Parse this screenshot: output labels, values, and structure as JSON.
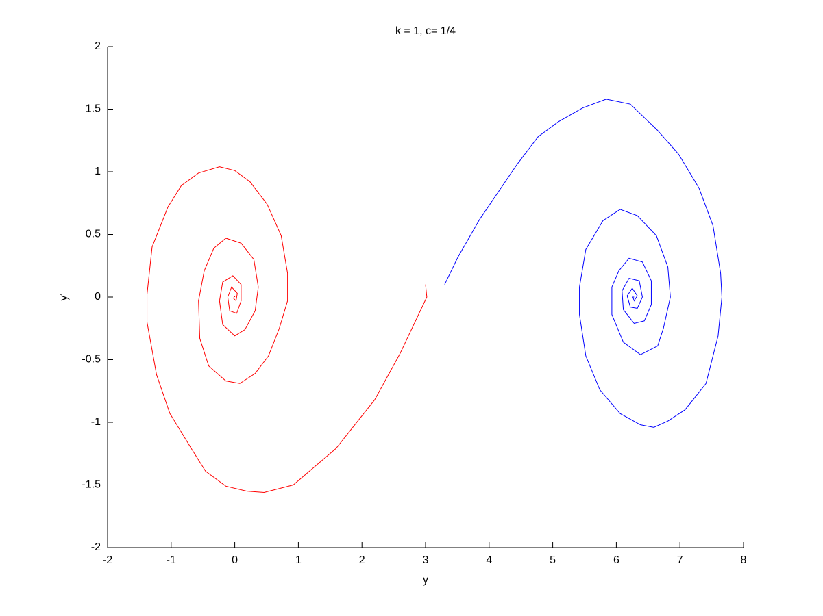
{
  "chart_data": {
    "type": "line",
    "title": "k = 1, c= 1/4",
    "xlabel": "y",
    "ylabel": "y'",
    "xlim": [
      -2,
      8
    ],
    "xticks": [
      -2,
      -1,
      0,
      1,
      2,
      3,
      4,
      5,
      6,
      7,
      8
    ],
    "ylim": [
      -2,
      2
    ],
    "yticks": [
      -2,
      -1.5,
      -1,
      -0.5,
      0,
      0.5,
      1,
      1.5,
      2
    ],
    "grid": false,
    "series": [
      {
        "color": "#ff0000",
        "x": [
          3.0,
          3.02,
          2.88,
          2.6,
          2.2,
          1.59,
          0.92,
          0.46,
          0.19,
          -0.14,
          -0.46,
          -0.67,
          -1.02,
          -1.23,
          -1.38,
          -1.38,
          -1.3,
          -1.05,
          -0.84,
          -0.57,
          -0.24,
          0.0,
          0.24,
          0.51,
          0.73,
          0.83,
          0.83,
          0.7,
          0.53,
          0.32,
          0.08,
          -0.14,
          -0.41,
          -0.55,
          -0.57,
          -0.48,
          -0.33,
          -0.14,
          0.1,
          0.3,
          0.37,
          0.32,
          0.16,
          0.0,
          -0.19,
          -0.24,
          -0.19,
          -0.03,
          0.1,
          0.1,
          0.03,
          -0.08,
          -0.11,
          -0.05,
          0.04,
          0.02,
          -0.02,
          0.0,
          0.0
        ],
        "values": [
          0.1,
          0.0,
          -0.15,
          -0.45,
          -0.82,
          -1.21,
          -1.5,
          -1.56,
          -1.55,
          -1.51,
          -1.39,
          -1.22,
          -0.93,
          -0.62,
          -0.2,
          0.02,
          0.4,
          0.72,
          0.89,
          0.99,
          1.04,
          1.01,
          0.92,
          0.74,
          0.49,
          0.19,
          -0.03,
          -0.25,
          -0.47,
          -0.61,
          -0.69,
          -0.67,
          -0.55,
          -0.33,
          -0.03,
          0.21,
          0.39,
          0.47,
          0.43,
          0.3,
          0.08,
          -0.11,
          -0.26,
          -0.31,
          -0.22,
          -0.03,
          0.12,
          0.17,
          0.1,
          -0.03,
          -0.13,
          -0.11,
          0.0,
          0.08,
          0.03,
          -0.03,
          -0.01,
          0.01,
          0.0
        ]
      },
      {
        "color": "#0000ff",
        "x": [
          3.3,
          3.51,
          3.85,
          4.44,
          4.77,
          5.09,
          5.47,
          5.84,
          6.22,
          6.65,
          6.98,
          7.3,
          7.52,
          7.64,
          7.66,
          7.6,
          7.41,
          7.08,
          6.81,
          6.59,
          6.38,
          6.06,
          5.74,
          5.52,
          5.42,
          5.42,
          5.52,
          5.79,
          6.06,
          6.33,
          6.63,
          6.81,
          6.85,
          6.74,
          6.65,
          6.38,
          6.11,
          5.93,
          5.93,
          6.04,
          6.2,
          6.41,
          6.55,
          6.55,
          6.44,
          6.28,
          6.11,
          6.09,
          6.2,
          6.36,
          6.41,
          6.33,
          6.22,
          6.17,
          6.25,
          6.33,
          6.28,
          6.26,
          6.28
        ],
        "values": [
          0.1,
          0.32,
          0.62,
          1.06,
          1.28,
          1.4,
          1.51,
          1.58,
          1.54,
          1.33,
          1.14,
          0.87,
          0.57,
          0.19,
          0.0,
          -0.31,
          -0.69,
          -0.9,
          -0.99,
          -1.04,
          -1.02,
          -0.93,
          -0.74,
          -0.47,
          -0.14,
          0.08,
          0.38,
          0.61,
          0.7,
          0.65,
          0.49,
          0.24,
          0.0,
          -0.25,
          -0.39,
          -0.46,
          -0.36,
          -0.14,
          0.08,
          0.21,
          0.31,
          0.28,
          0.13,
          -0.06,
          -0.19,
          -0.21,
          -0.1,
          0.05,
          0.15,
          0.13,
          0.0,
          -0.09,
          -0.08,
          0.01,
          0.07,
          0.01,
          -0.03,
          0.0,
          0.0
        ]
      }
    ]
  }
}
